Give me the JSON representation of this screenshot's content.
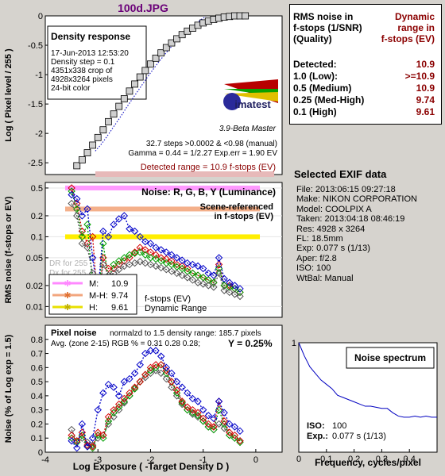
{
  "title": "100d.JPG",
  "colors": {
    "R": "#d40000",
    "G": "#00a000",
    "B": "#0000c8",
    "Y": "#555555",
    "accent": "#8b0000",
    "title": "#6a0078"
  },
  "density": {
    "heading": "Density response",
    "info": [
      "17-Jun-2013 12:53:20",
      "Density step = 0.1",
      "4351x338 crop of",
      "4928x3264 pixels",
      "24-bit color"
    ],
    "logo": "imatest",
    "version": "3.9-Beta  Master",
    "stats": [
      "32.7 steps >0.0002 & <0.98 (manual)",
      "Gamma = 0.44 = 1/2.27   Exp.err = 1.90 EV"
    ],
    "detected": "Detected range = 10.9 f-stops (EV)",
    "ylabel": "Log ( Pixel level / 255 )"
  },
  "noise_plot": {
    "title": "Noise: R, G, B, Y (Luminance)",
    "scene": [
      "Scene-referenced",
      "in f-stops (EV)"
    ],
    "ylabel": "RMS noise (f-stops or EV)",
    "dr_legend": [
      {
        "label": "M:",
        "value": "10.9"
      },
      {
        "label": "M-H:",
        "value": "9.74"
      },
      {
        "label": "H:",
        "value": "9.61"
      }
    ],
    "dr_caption": [
      "f-stops (EV)",
      "Dynamic Range"
    ],
    "dr_ghost": [
      "DR for 255",
      "Dx for 255"
    ]
  },
  "pixel_noise": {
    "heading": "Pixel noise",
    "norm": "normalzd to 1.5 density range: 185.7 pixels",
    "avg": "Avg. (zone 2-15) RGB % = 0.31   0.28   0.28;",
    "y": "Y = 0.25%",
    "ylabel": "Noise (% of Log exp = 1.5)",
    "xlabel": "Log Exposure ( -Target Density D )"
  },
  "rms_table": {
    "h1": [
      "RMS noise in",
      "f-stops (1/SNR)",
      "(Quality)"
    ],
    "h2": [
      "Dynamic",
      "range in",
      "f-stops (EV)"
    ],
    "rows": [
      {
        "label": "Detected:",
        "value": "10.9"
      },
      {
        "label": "1.0   (Low):",
        "value": ">=10.9"
      },
      {
        "label": "0.5   (Medium)",
        "value": "10.9"
      },
      {
        "label": "0.25 (Med-High)",
        "value": "9.74"
      },
      {
        "label": "0.1   (High)",
        "value": "9.61"
      }
    ]
  },
  "exif": {
    "heading": "Selected EXIF data",
    "lines": [
      "File:  2013:06:15 09:27:18",
      "Make:  NIKON CORPORATION",
      "Model: COOLPIX A",
      "Taken:  2013:04:18 08:46:19",
      "Res:    4928 x 3264",
      "FL:  18.5mm",
      "Exp:   0.077 s  (1/13)",
      "Aper:  f/2.8",
      "ISO:    100",
      "WtBal: Manual"
    ]
  },
  "spectrum": {
    "title": "Noise spectrum",
    "iso_label": "ISO:",
    "iso_value": "100",
    "exp_label": "Exp.:",
    "exp_value": "0.077 s   (1/13)",
    "xlabel": "Frequency, cycles/pixel"
  },
  "chart_data": [
    {
      "type": "scatter",
      "title": "Density response",
      "ylabel": "Log ( Pixel level / 255 )",
      "xlim": [
        -4,
        0.5
      ],
      "ylim": [
        -2.7,
        0
      ],
      "yticks": [
        0,
        -0.5,
        -1,
        -1.5,
        -2,
        -2.5
      ],
      "xticks": [
        -4,
        -3,
        -2,
        -1,
        0
      ],
      "x": [
        -3.4,
        -3.3,
        -3.2,
        -3.1,
        -3.0,
        -2.9,
        -2.8,
        -2.7,
        -2.6,
        -2.5,
        -2.4,
        -2.3,
        -2.2,
        -2.1,
        -2.0,
        -1.9,
        -1.8,
        -1.7,
        -1.6,
        -1.5,
        -1.4,
        -1.3,
        -1.2,
        -1.1,
        -1.0,
        -0.9,
        -0.8,
        -0.7,
        -0.6,
        -0.5,
        -0.4,
        -0.3,
        -0.2
      ],
      "y": [
        -2.55,
        -2.45,
        -2.33,
        -2.2,
        -2.07,
        -1.94,
        -1.8,
        -1.67,
        -1.54,
        -1.41,
        -1.28,
        -1.16,
        -1.04,
        -0.93,
        -0.82,
        -0.72,
        -0.63,
        -0.54,
        -0.46,
        -0.39,
        -0.32,
        -0.26,
        -0.21,
        -0.16,
        -0.12,
        -0.09,
        -0.06,
        -0.04,
        -0.02,
        -0.01,
        0,
        0,
        0
      ]
    },
    {
      "type": "line",
      "title": "Noise: R, G, B, Y (Luminance)",
      "ylabel": "RMS noise (f-stops or EV)",
      "yscale": "log",
      "yticks": [
        0.5,
        0.2,
        0.1,
        0.05,
        0.02,
        0.01
      ],
      "xlim": [
        -4,
        0.5
      ],
      "ylim": [
        0.007,
        0.6
      ],
      "thresholds": [
        {
          "y": 0.5,
          "color": "#ff99ff"
        },
        {
          "y": 0.25,
          "color": "#f4b08a"
        },
        {
          "y": 0.1,
          "color": "#ffee00"
        }
      ],
      "x": [
        -3.5,
        -3.4,
        -3.3,
        -3.2,
        -3.1,
        -3.0,
        -2.9,
        -2.8,
        -2.7,
        -2.6,
        -2.5,
        -2.4,
        -2.3,
        -2.2,
        -2.1,
        -2.0,
        -1.9,
        -1.8,
        -1.7,
        -1.6,
        -1.5,
        -1.4,
        -1.3,
        -1.2,
        -1.1,
        -1.0,
        -0.9,
        -0.8,
        -0.7,
        -0.6,
        -0.5,
        -0.4,
        -0.3
      ],
      "series": [
        {
          "name": "R",
          "values": [
            0.5,
            0.3,
            0.12,
            0.08,
            0.1,
            0.01,
            0.05,
            0.035,
            0.035,
            0.04,
            0.045,
            0.05,
            0.06,
            0.07,
            0.065,
            0.06,
            0.055,
            0.05,
            0.048,
            0.045,
            0.04,
            0.038,
            0.035,
            0.03,
            0.028,
            0.026,
            0.024,
            0.022,
            0.04,
            0.02,
            0.02,
            0.018,
            0.016
          ]
        },
        {
          "name": "G",
          "values": [
            0.45,
            0.25,
            0.1,
            0.15,
            0.02,
            0.012,
            0.08,
            0.025,
            0.04,
            0.045,
            0.05,
            0.055,
            0.058,
            0.06,
            0.055,
            0.05,
            0.048,
            0.045,
            0.042,
            0.04,
            0.037,
            0.035,
            0.032,
            0.03,
            0.028,
            0.026,
            0.024,
            0.022,
            0.035,
            0.02,
            0.019,
            0.018,
            0.016
          ]
        },
        {
          "name": "B",
          "values": [
            0.4,
            0.35,
            0.2,
            0.25,
            0.05,
            0.015,
            0.12,
            0.1,
            0.15,
            0.18,
            0.2,
            0.13,
            0.12,
            0.1,
            0.085,
            0.08,
            0.07,
            0.065,
            0.06,
            0.055,
            0.05,
            0.046,
            0.042,
            0.04,
            0.038,
            0.035,
            0.03,
            0.028,
            0.05,
            0.025,
            0.022,
            0.02,
            0.018
          ]
        },
        {
          "name": "Y",
          "values": [
            0.3,
            0.2,
            0.08,
            0.07,
            0.03,
            0.012,
            0.04,
            0.028,
            0.03,
            0.034,
            0.038,
            0.04,
            0.042,
            0.044,
            0.042,
            0.04,
            0.038,
            0.036,
            0.034,
            0.032,
            0.03,
            0.028,
            0.026,
            0.024,
            0.022,
            0.021,
            0.02,
            0.019,
            0.03,
            0.017,
            0.016,
            0.015,
            0.014
          ]
        }
      ]
    },
    {
      "type": "line",
      "title": "Pixel noise",
      "ylabel": "Noise (% of Log exp = 1.5)",
      "xlabel": "Log Exposure ( -Target Density D )",
      "xlim": [
        -4,
        0.5
      ],
      "ylim": [
        0,
        0.9
      ],
      "xticks": [
        -4,
        -3,
        -2,
        -1,
        0
      ],
      "yticks": [
        0,
        0.1,
        0.2,
        0.3,
        0.4,
        0.5,
        0.6,
        0.7,
        0.8
      ],
      "x": [
        -3.5,
        -3.4,
        -3.3,
        -3.2,
        -3.1,
        -3.0,
        -2.9,
        -2.8,
        -2.7,
        -2.6,
        -2.5,
        -2.4,
        -2.3,
        -2.2,
        -2.1,
        -2.0,
        -1.9,
        -1.8,
        -1.7,
        -1.6,
        -1.5,
        -1.4,
        -1.3,
        -1.2,
        -1.1,
        -1.0,
        -0.9,
        -0.8,
        -0.7,
        -0.6,
        -0.5,
        -0.4,
        -0.3
      ],
      "series": [
        {
          "name": "R",
          "values": [
            0.12,
            0.08,
            0.14,
            0.05,
            0.04,
            0.14,
            0.12,
            0.25,
            0.3,
            0.34,
            0.38,
            0.42,
            0.46,
            0.5,
            0.55,
            0.6,
            0.62,
            0.62,
            0.58,
            0.5,
            0.44,
            0.36,
            0.32,
            0.3,
            0.28,
            0.24,
            0.2,
            0.18,
            0.36,
            0.22,
            0.14,
            0.12,
            0.08
          ]
        },
        {
          "name": "G",
          "values": [
            0.1,
            0.07,
            0.12,
            0.04,
            0.03,
            0.12,
            0.1,
            0.22,
            0.28,
            0.32,
            0.36,
            0.4,
            0.45,
            0.5,
            0.55,
            0.58,
            0.6,
            0.62,
            0.56,
            0.5,
            0.42,
            0.35,
            0.3,
            0.28,
            0.26,
            0.22,
            0.18,
            0.16,
            0.3,
            0.2,
            0.12,
            0.1,
            0.07
          ]
        },
        {
          "name": "B",
          "values": [
            0.08,
            0.03,
            0.2,
            0.04,
            0.1,
            0.3,
            0.42,
            0.48,
            0.46,
            0.4,
            0.5,
            0.52,
            0.56,
            0.62,
            0.7,
            0.72,
            0.72,
            0.68,
            0.6,
            0.56,
            0.5,
            0.46,
            0.42,
            0.38,
            0.36,
            0.3,
            0.26,
            0.24,
            0.36,
            0.28,
            0.2,
            0.18,
            0.15
          ]
        },
        {
          "name": "Y",
          "values": [
            0.16,
            0.07,
            0.1,
            0.07,
            0.05,
            0.1,
            0.12,
            0.2,
            0.25,
            0.3,
            0.35,
            0.4,
            0.45,
            0.5,
            0.53,
            0.56,
            0.58,
            0.56,
            0.52,
            0.46,
            0.4,
            0.34,
            0.3,
            0.27,
            0.25,
            0.22,
            0.18,
            0.16,
            0.2,
            0.17,
            0.12,
            0.1,
            0.08
          ]
        }
      ]
    },
    {
      "type": "line",
      "title": "Noise spectrum",
      "xlabel": "Frequency, cycles/pixel",
      "xlim": [
        0,
        0.5
      ],
      "ylim": [
        0,
        1
      ],
      "xticks": [
        0,
        0.1,
        0.2,
        0.3,
        0.4
      ],
      "yticks": [
        1
      ],
      "x": [
        0,
        0.02,
        0.04,
        0.06,
        0.08,
        0.1,
        0.12,
        0.14,
        0.16,
        0.18,
        0.2,
        0.22,
        0.24,
        0.26,
        0.28,
        0.3,
        0.32,
        0.34,
        0.36,
        0.38,
        0.4,
        0.42,
        0.44,
        0.46,
        0.48,
        0.5
      ],
      "values": [
        1.0,
        0.88,
        0.78,
        0.72,
        0.66,
        0.62,
        0.58,
        0.52,
        0.5,
        0.48,
        0.46,
        0.44,
        0.42,
        0.42,
        0.41,
        0.4,
        0.4,
        0.36,
        0.33,
        0.32,
        0.32,
        0.33,
        0.32,
        0.33,
        0.32,
        0.32
      ]
    }
  ]
}
